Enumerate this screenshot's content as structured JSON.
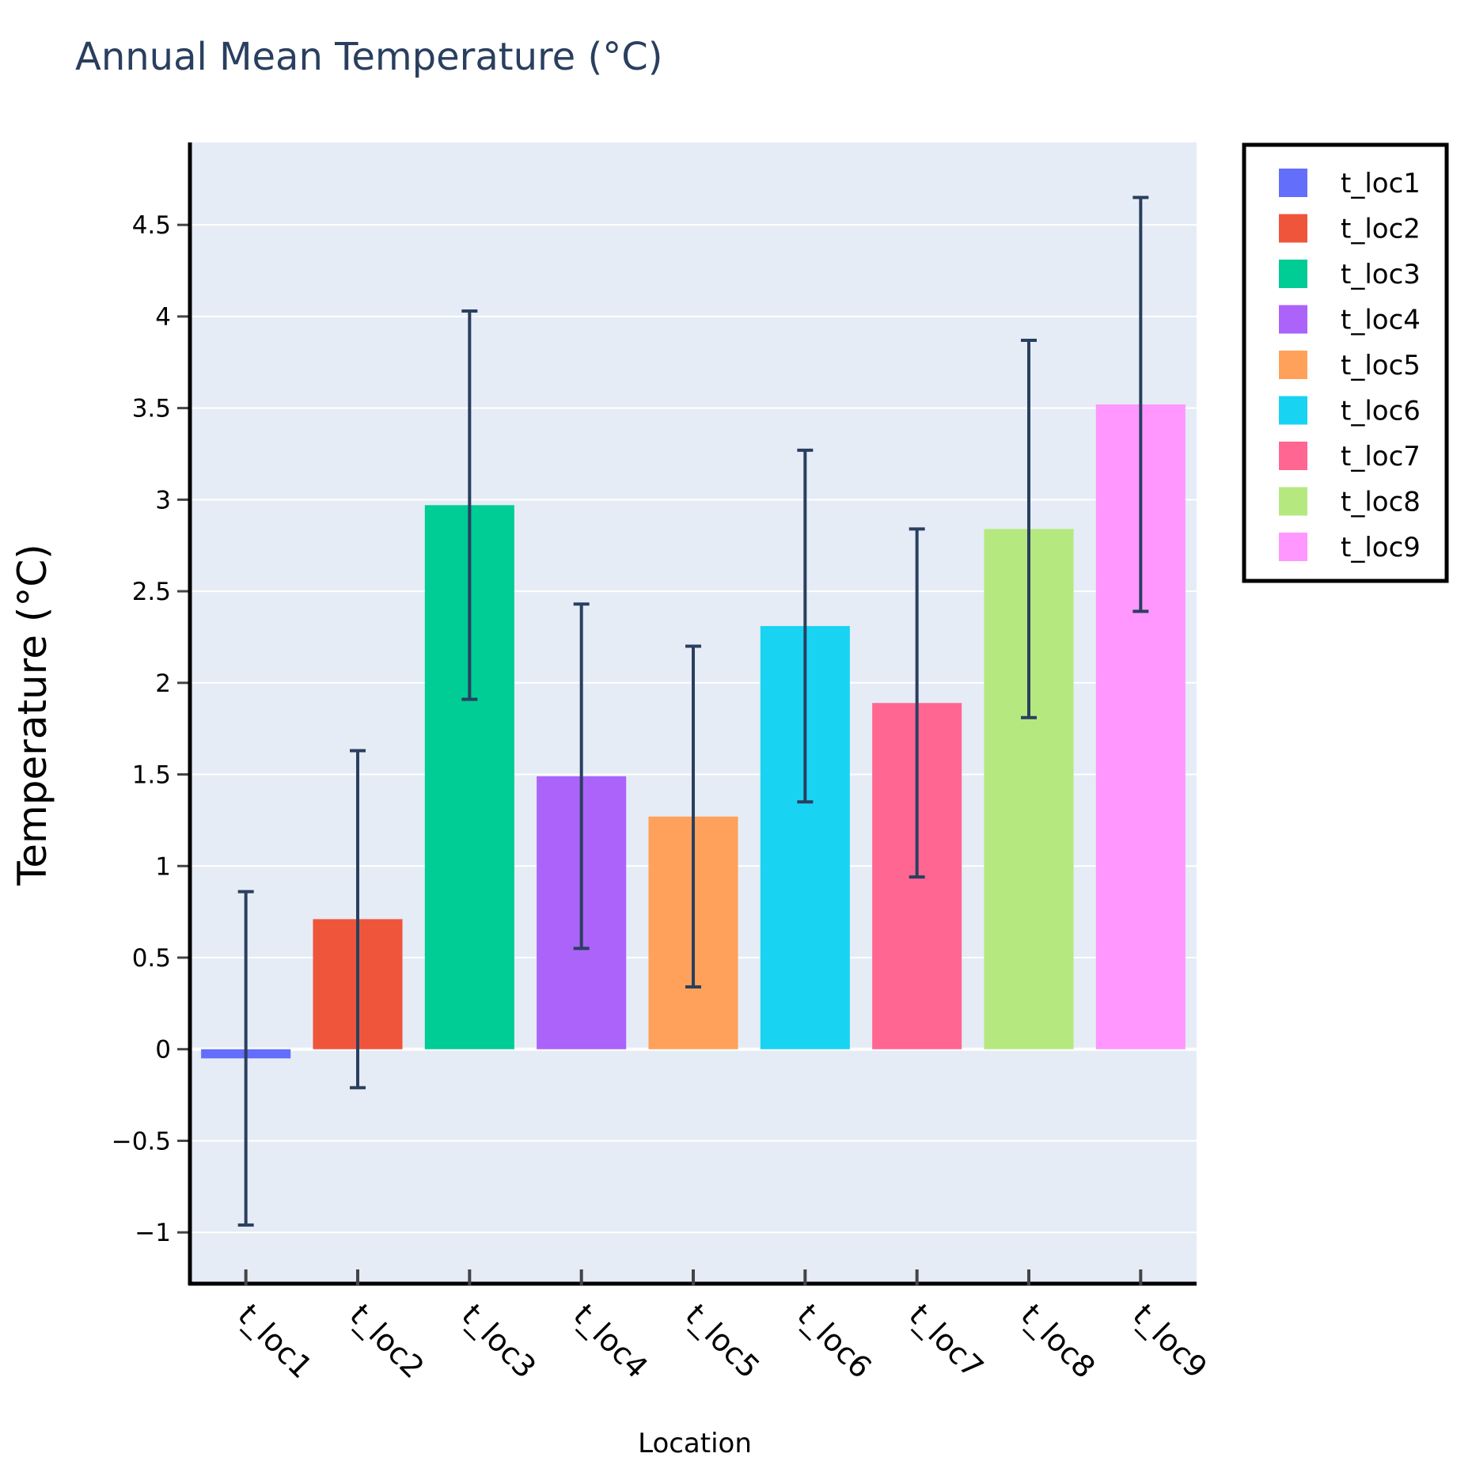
{
  "chart_data": {
    "type": "bar",
    "title": "Annual Mean Temperature (°C)",
    "xlabel": "Location",
    "ylabel": "Temperature (°C)",
    "categories": [
      "t_loc1",
      "t_loc2",
      "t_loc3",
      "t_loc4",
      "t_loc5",
      "t_loc6",
      "t_loc7",
      "t_loc8",
      "t_loc9"
    ],
    "values": [
      -0.05,
      0.71,
      2.97,
      1.49,
      1.27,
      2.31,
      1.89,
      2.84,
      3.52
    ],
    "error": [
      0.91,
      0.92,
      1.06,
      0.94,
      0.93,
      0.96,
      0.95,
      1.03,
      1.13
    ],
    "colors": [
      "#636efa",
      "#EF553B",
      "#00cc96",
      "#ab63fa",
      "#FFA15A",
      "#19d3f3",
      "#FF6692",
      "#B6E880",
      "#FF97FF"
    ],
    "ylim": [
      -1.28,
      4.95
    ],
    "yticks": [
      -1,
      -0.5,
      0,
      0.5,
      1,
      1.5,
      2,
      2.5,
      3,
      3.5,
      4,
      4.5
    ],
    "ytick_labels": [
      "−1",
      "−0.5",
      "0",
      "0.5",
      "1",
      "1.5",
      "2",
      "2.5",
      "3",
      "3.5",
      "4",
      "4.5"
    ],
    "grid": true,
    "legend_position": "top-right",
    "plot_background": "#E5ECF6",
    "error_bar_color": "#2a3f5f"
  }
}
